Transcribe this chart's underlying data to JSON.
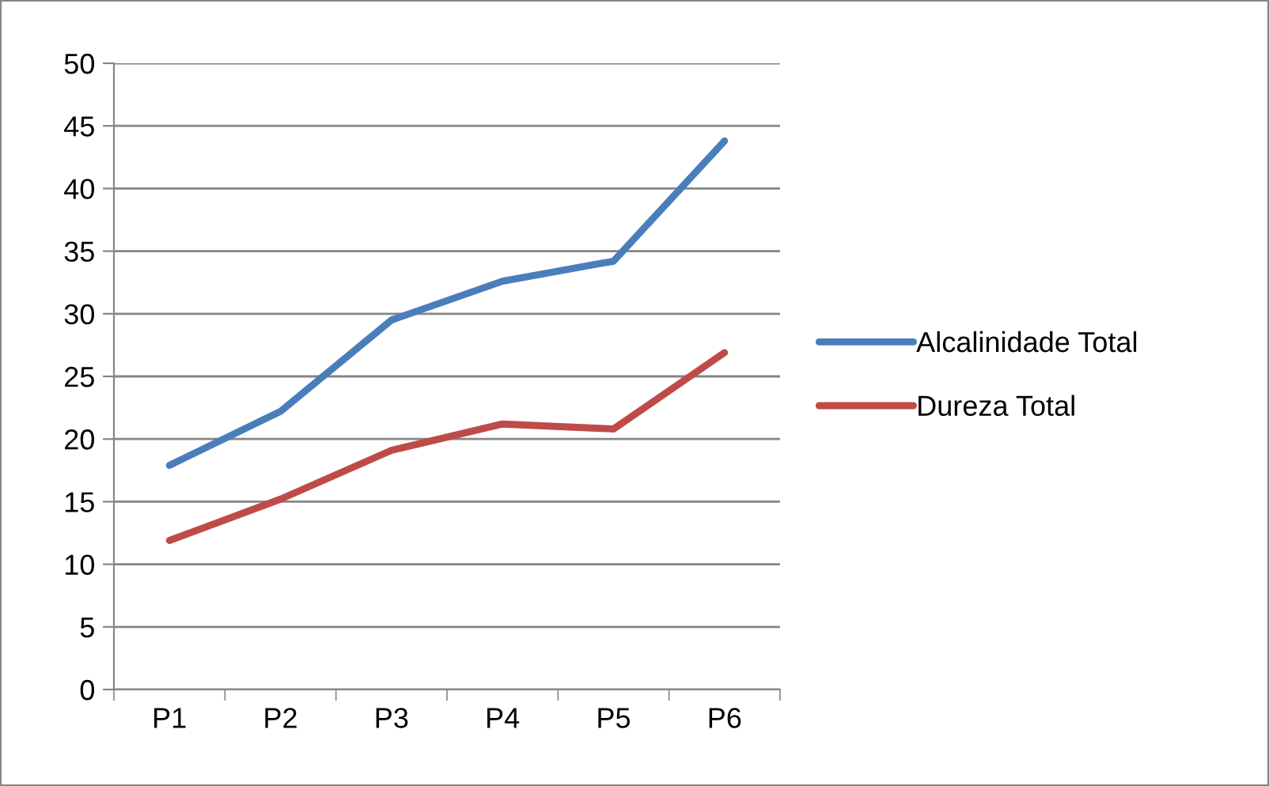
{
  "chart_data": {
    "type": "line",
    "categories": [
      "P1",
      "P2",
      "P3",
      "P4",
      "P5",
      "P6"
    ],
    "series": [
      {
        "name": "Alcalinidade Total",
        "color": "#4a7ebb",
        "values": [
          17.9,
          22.2,
          29.5,
          32.6,
          34.2,
          43.8
        ]
      },
      {
        "name": "Dureza Total",
        "color": "#be4b48",
        "values": [
          11.9,
          15.2,
          19.1,
          21.2,
          20.8,
          26.9
        ]
      }
    ],
    "ylim": [
      0,
      50
    ],
    "yticks": [
      0,
      5,
      10,
      15,
      20,
      25,
      30,
      35,
      40,
      45,
      50
    ],
    "grid": "y",
    "legend": "right",
    "marker": "none",
    "line_style": "solid"
  }
}
